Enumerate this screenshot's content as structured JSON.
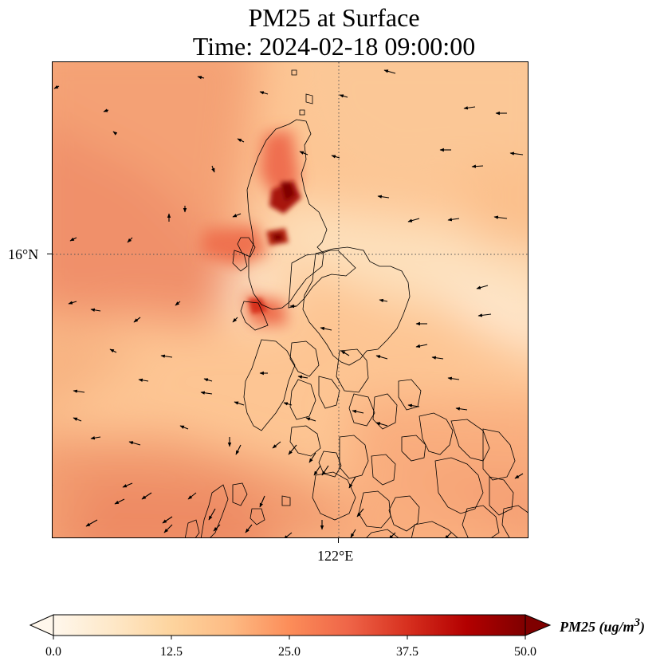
{
  "title": "PM25 at Surface",
  "subtitle": "Time: 2024-02-18 09:00:00",
  "map": {
    "type": "gridded concentration field with wind vectors and coastlines",
    "region": "Luzon, Philippines",
    "variable": "PM25",
    "gridlines": {
      "latitude": "16°N",
      "longitude": "122°E",
      "style": "dotted"
    },
    "hotspots_ug_m3": [
      {
        "area": "north-west Luzon coast",
        "value": 50
      },
      {
        "area": "west Luzon coast",
        "value": 45
      },
      {
        "area": "west coast near 15.5°N",
        "value": 30
      }
    ],
    "background_range_ug_m3": [
      5,
      28
    ],
    "wind_direction": "mostly north-easterly (arrows pointing west / south-west)"
  },
  "colorbar": {
    "label_prefix": "PM25 (ug/m",
    "label_sup": "3",
    "label_suffix": ")",
    "ticks": [
      "0.0",
      "12.5",
      "25.0",
      "37.5",
      "50.0"
    ],
    "range": [
      0,
      50
    ],
    "extend": "both",
    "colormap": "OrRd",
    "colors": [
      "#fff7ec",
      "#fee8c8",
      "#fdd49e",
      "#fdbb84",
      "#fc8d59",
      "#ef6548",
      "#d7301f",
      "#b30000",
      "#7f0000"
    ]
  }
}
